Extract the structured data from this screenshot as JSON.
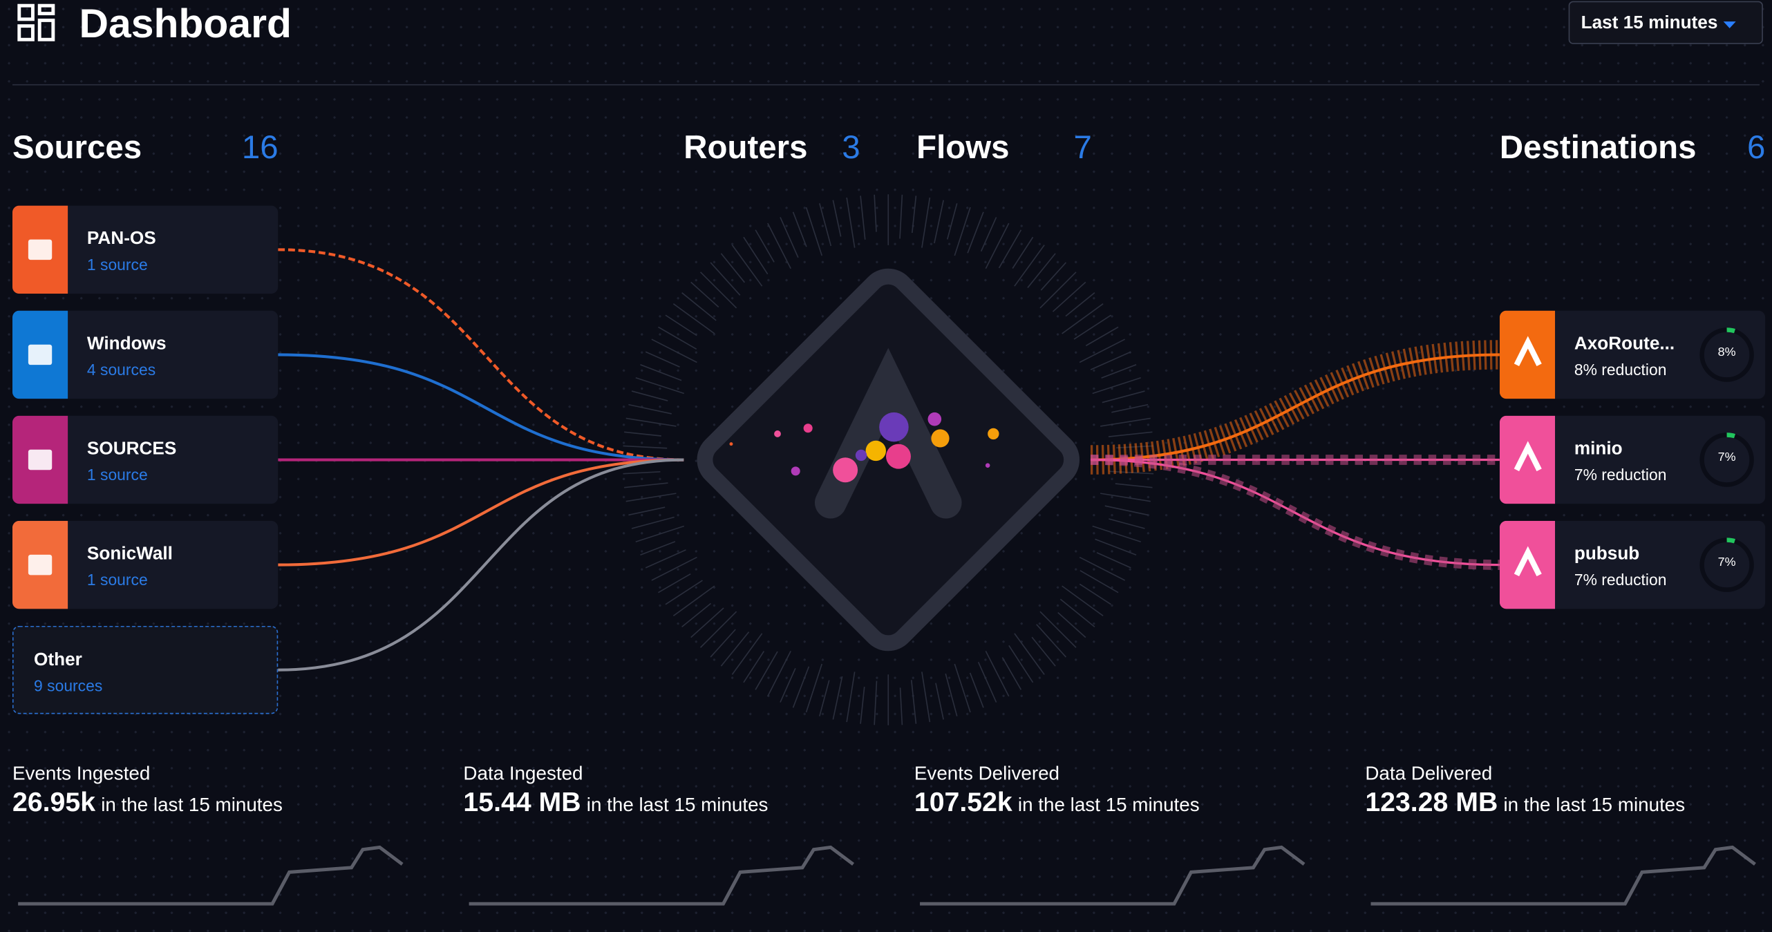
{
  "header": {
    "title": "Dashboard",
    "time_range": "Last 15 minutes"
  },
  "sections": [
    {
      "label": "Sources",
      "count": "16"
    },
    {
      "label": "Routers",
      "count": "3"
    },
    {
      "label": "Flows",
      "count": "7"
    },
    {
      "label": "Destinations",
      "count": "6"
    }
  ],
  "sources": [
    {
      "name": "PAN-OS",
      "detail": "1 source"
    },
    {
      "name": "Windows",
      "detail": "4 sources"
    },
    {
      "name": "SOURCES",
      "detail": "1 source"
    },
    {
      "name": "SonicWall",
      "detail": "1 source"
    },
    {
      "name": "Other",
      "detail": "9 sources"
    }
  ],
  "destinations": [
    {
      "name": "AxoRoute...",
      "detail": "8% reduction",
      "gauge": "8%"
    },
    {
      "name": "minio",
      "detail": "7% reduction",
      "gauge": "7%"
    },
    {
      "name": "pubsub",
      "detail": "7% reduction",
      "gauge": "7%"
    }
  ],
  "stats": [
    {
      "label": "Events Ingested",
      "value": "26.95k",
      "suffix": "in the last 15 minutes"
    },
    {
      "label": "Data Ingested",
      "value": "15.44 MB",
      "suffix": "in the last 15 minutes"
    },
    {
      "label": "Events Delivered",
      "value": "107.52k",
      "suffix": "in the last 15 minutes"
    },
    {
      "label": "Data Delivered",
      "value": "123.28 MB",
      "suffix": "in the last 15 minutes"
    }
  ]
}
